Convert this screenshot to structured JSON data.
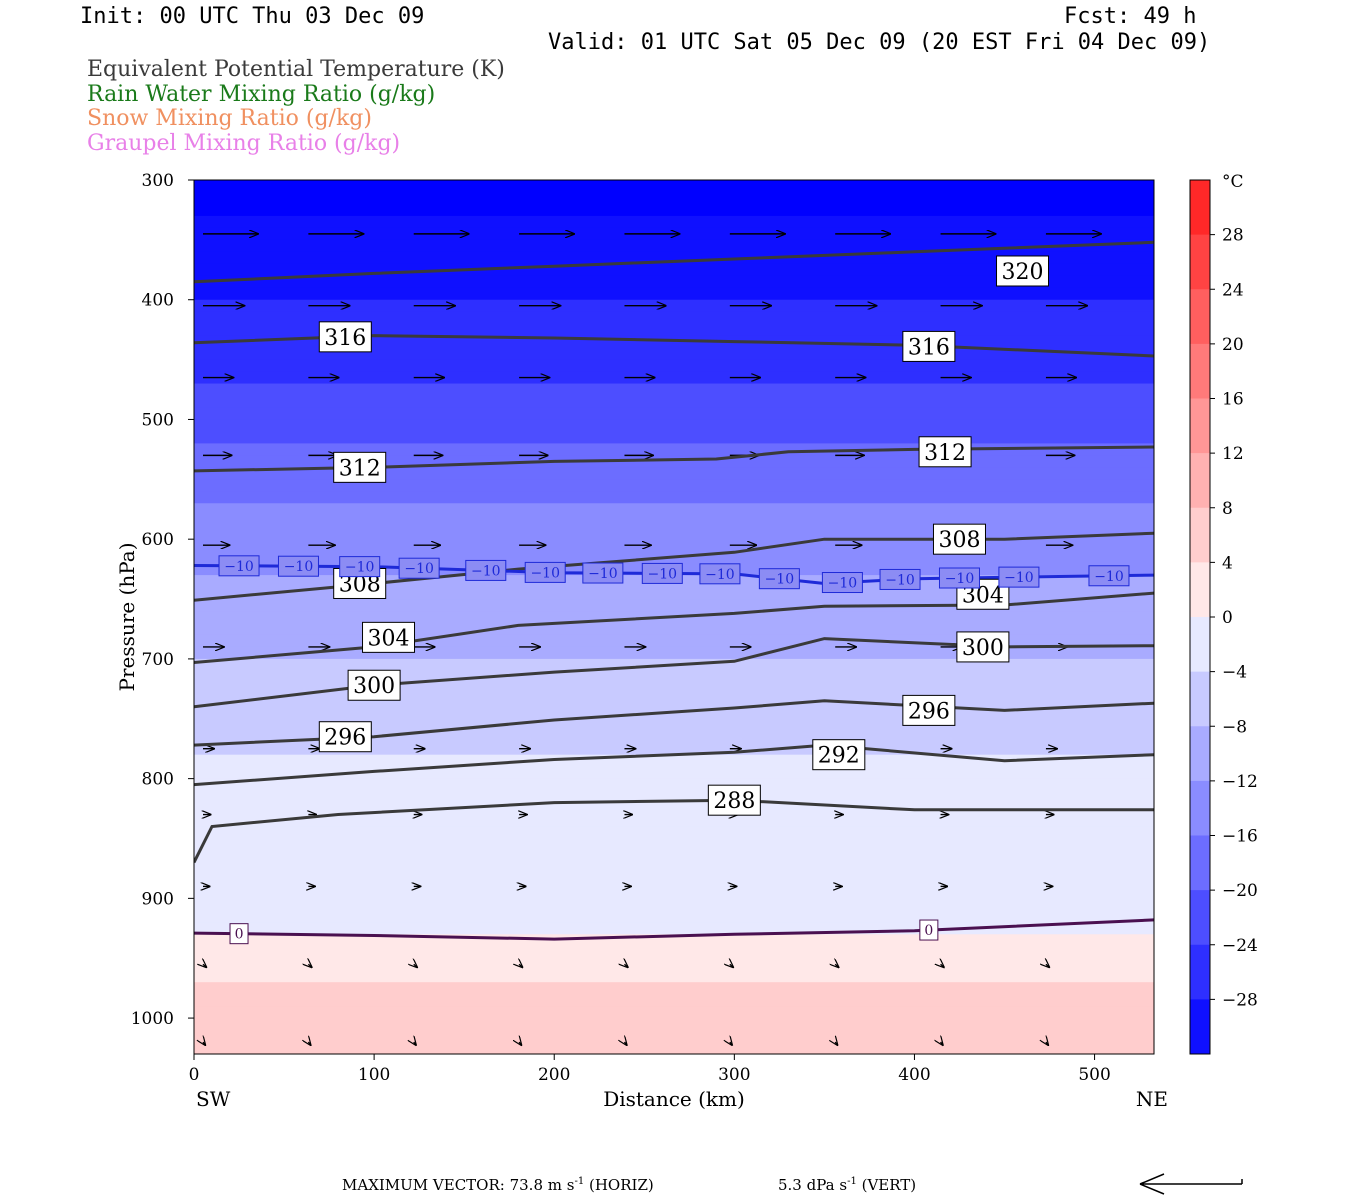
{
  "header": {
    "init": "Init: 00 UTC Thu 03 Dec 09",
    "fcst": "Fcst:   49 h",
    "valid": "Valid: 01 UTC Sat 05 Dec 09 (20 EST Fri 04 Dec 09)"
  },
  "legend": [
    {
      "label": "Equivalent Potential Temperature (K)",
      "color": "#3a3a3a"
    },
    {
      "label": "Rain Water Mixing Ratio (g/kg)",
      "color": "#1a7a1a"
    },
    {
      "label": "Snow Mixing Ratio (g/kg)",
      "color": "#f09060"
    },
    {
      "label": "Graupel Mixing Ratio (g/kg)",
      "color": "#e880e8"
    }
  ],
  "chart_data": {
    "type": "cross-section",
    "xlabel": "Distance (km)",
    "ylabel": "Pressure (hPa)",
    "xlim": [
      0,
      533
    ],
    "ylim": [
      1030,
      300
    ],
    "x_ticks": [
      0,
      100,
      200,
      300,
      400,
      500
    ],
    "y_ticks": [
      300,
      400,
      500,
      600,
      700,
      800,
      900,
      1000
    ],
    "x_end_labels": {
      "left": "SW",
      "right": "NE"
    },
    "colorbar": {
      "unit": "°C",
      "range": [
        -32,
        32
      ],
      "step": 4,
      "tick_labels": [
        "28",
        "24",
        "20",
        "16",
        "12",
        "8",
        "4",
        "0",
        "−4",
        "−8",
        "−12",
        "−16",
        "−20",
        "−24",
        "−28"
      ]
    },
    "theta_e_contours": [
      {
        "label": "320",
        "label_x": 460,
        "label_p": 376,
        "points": [
          [
            0,
            385
          ],
          [
            100,
            378
          ],
          [
            200,
            372
          ],
          [
            300,
            366
          ],
          [
            400,
            360
          ],
          [
            533,
            352
          ]
        ]
      },
      {
        "label": "316",
        "label_x": 84,
        "label_p": 431,
        "points": [
          [
            0,
            436
          ],
          [
            100,
            430
          ],
          [
            200,
            432
          ],
          [
            300,
            435
          ],
          [
            400,
            438
          ],
          [
            533,
            447
          ]
        ]
      },
      {
        "label": "316",
        "label_x": 408,
        "label_p": 439,
        "points": []
      },
      {
        "label": "312",
        "label_x": 92,
        "label_p": 540,
        "points": [
          [
            0,
            543
          ],
          [
            100,
            540
          ],
          [
            200,
            535
          ],
          [
            290,
            533
          ],
          [
            330,
            527
          ],
          [
            400,
            525
          ],
          [
            533,
            523
          ]
        ]
      },
      {
        "label": "312",
        "label_x": 417,
        "label_p": 527,
        "points": []
      },
      {
        "label": "308",
        "label_x": 92,
        "label_p": 637,
        "points": [
          [
            0,
            651
          ],
          [
            100,
            637
          ],
          [
            180,
            625
          ],
          [
            300,
            611
          ],
          [
            350,
            600
          ],
          [
            450,
            600
          ],
          [
            533,
            595
          ]
        ]
      },
      {
        "label": "308",
        "label_x": 425,
        "label_p": 600,
        "points": []
      },
      {
        "label": "304",
        "label_x": 108,
        "label_p": 682,
        "points": [
          [
            0,
            703
          ],
          [
            100,
            690
          ],
          [
            180,
            672
          ],
          [
            300,
            662
          ],
          [
            350,
            656
          ],
          [
            450,
            655
          ],
          [
            533,
            645
          ]
        ]
      },
      {
        "label": "304",
        "label_x": 438,
        "label_p": 646,
        "points": []
      },
      {
        "label": "300",
        "label_x": 100,
        "label_p": 722,
        "points": [
          [
            0,
            740
          ],
          [
            100,
            722
          ],
          [
            200,
            711
          ],
          [
            300,
            702
          ],
          [
            350,
            683
          ],
          [
            450,
            690
          ],
          [
            533,
            689
          ]
        ]
      },
      {
        "label": "300",
        "label_x": 438,
        "label_p": 690,
        "points": []
      },
      {
        "label": "296",
        "label_x": 84,
        "label_p": 765,
        "points": [
          [
            0,
            772
          ],
          [
            100,
            765
          ],
          [
            200,
            751
          ],
          [
            300,
            741
          ],
          [
            350,
            735
          ],
          [
            450,
            743
          ],
          [
            533,
            737
          ]
        ]
      },
      {
        "label": "296",
        "label_x": 408,
        "label_p": 743,
        "points": []
      },
      {
        "label": "292",
        "label_x": 358,
        "label_p": 780,
        "points": [
          [
            0,
            805
          ],
          [
            100,
            794
          ],
          [
            200,
            784
          ],
          [
            300,
            778
          ],
          [
            350,
            772
          ],
          [
            450,
            785
          ],
          [
            533,
            780
          ]
        ]
      },
      {
        "label": "288",
        "label_x": 300,
        "label_p": 818,
        "points": [
          [
            0,
            870
          ],
          [
            10,
            840
          ],
          [
            80,
            830
          ],
          [
            200,
            820
          ],
          [
            300,
            818
          ],
          [
            400,
            826
          ],
          [
            533,
            826
          ]
        ]
      }
    ],
    "temperature_contours": [
      {
        "label": "−10",
        "points": [
          [
            0,
            622
          ],
          [
            100,
            623
          ],
          [
            200,
            628
          ],
          [
            300,
            629
          ],
          [
            350,
            637
          ],
          [
            400,
            633
          ],
          [
            533,
            630
          ]
        ],
        "label_xs": [
          25,
          58,
          92,
          125,
          162,
          195,
          227,
          260,
          292,
          325,
          360,
          392,
          425,
          458,
          508
        ]
      },
      {
        "label": "0",
        "points": [
          [
            0,
            929
          ],
          [
            100,
            931
          ],
          [
            200,
            934
          ],
          [
            300,
            930
          ],
          [
            400,
            927
          ],
          [
            533,
            918
          ]
        ],
        "label_xs": [
          25,
          408
        ]
      }
    ]
  },
  "footer": {
    "max_vector": "MAXIMUM VECTOR:  73.8 m s",
    "horiz": "(HORIZ)",
    "vert_value": "5.3 dPa s",
    "vert": "(VERT)",
    "exponent": "-1"
  }
}
